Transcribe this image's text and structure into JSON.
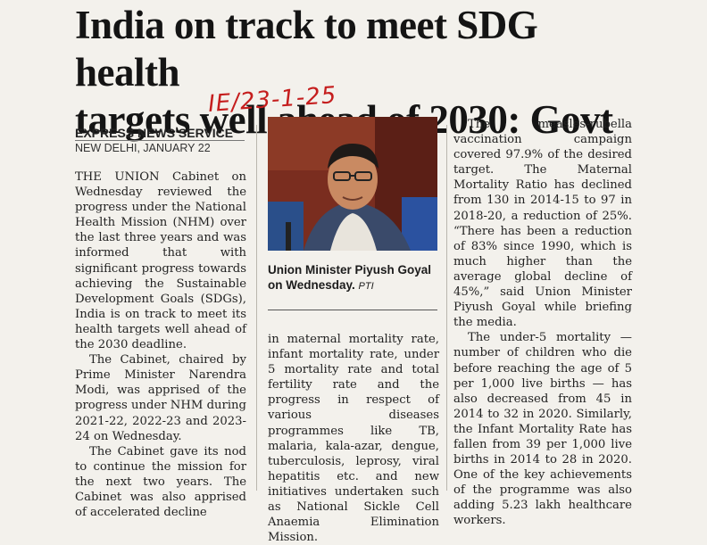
{
  "headline": {
    "line1": "India on track to meet SDG health",
    "line2": "targets well ahead of 2030: Govt"
  },
  "handwritten_note": "IE/23-1-25",
  "byline": "EXPRESS NEWS SERVICE",
  "dateline": "NEW DELHI, JANUARY 22",
  "photo": {
    "caption": "Union Minister Piyush Goyal on Wednesday.",
    "credit": "PTI"
  },
  "column1": {
    "paragraphs": [
      "THE UNION Cabinet on Wednesday reviewed the progress under the National Health Mission (NHM) over the last three years and was informed that with significant progress towards achieving the Sustainable Development Goals (SDGs), India is on track to meet its health targets well ahead of the 2030 deadline.",
      "The Cabinet, chaired by Prime Minister Narendra Modi, was apprised of the progress under NHM during 2021-22, 2022-23 and 2023-24 on Wednesday.",
      "The Cabinet gave its nod to continue the mission for the next two years. The Cabinet was also apprised of accelerated decline"
    ]
  },
  "column2": {
    "paragraphs": [
      "in maternal mortality rate, infant mortality rate, under 5 mortality rate and total fertility rate and the progress in respect of various diseases programmes like TB, malaria, kala-azar, dengue, tuberculosis, leprosy, viral hepatitis etc. and new initiatives undertaken such as National Sickle Cell Anaemia Elimination Mission."
    ]
  },
  "column3": {
    "paragraphs": [
      "The measles-rubella vaccination campaign covered 97.9% of the desired target. The Maternal Mortality Ratio has declined from 130 in 2014-15 to 97 in 2018-20, a reduction of 25%. “There has been a reduction of 83% since 1990, which is much higher than the average global decline of 45%,” said Union Minister Piyush Goyal while briefing the media.",
      "The under-5 mortality — number of children who die before reaching the age of 5 per 1,000 live births — has also decreased from 45 in 2014 to 32 in 2020. Similarly, the Infant Mortality Rate has fallen from 39 per 1,000 live births in 2014 to 28 in 2020. One of the key achievements of the programme was also adding 5.23 lakh healthcare workers."
    ]
  }
}
